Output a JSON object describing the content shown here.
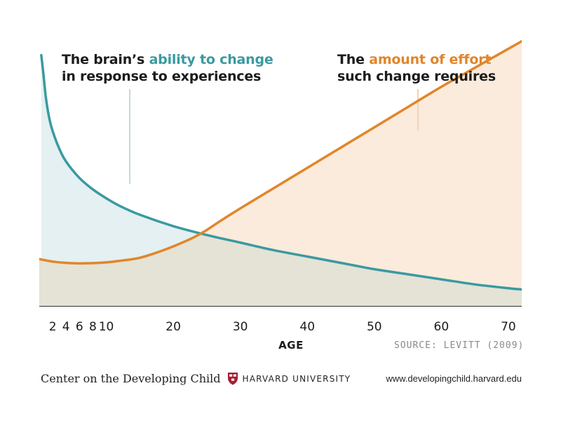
{
  "chart_data": {
    "type": "line",
    "x_ticks": [
      2,
      4,
      6,
      8,
      10,
      20,
      30,
      40,
      50,
      60,
      70
    ],
    "xlabel": "AGE",
    "xlim": [
      0,
      72
    ],
    "ylim": [
      0,
      100
    ],
    "series": [
      {
        "name": "The brain's ability to change in response to experiences",
        "color": "#3a9aa0",
        "fill": "#e4f0f1",
        "x": [
          0.3,
          0.6,
          1,
          1.5,
          2,
          3,
          4,
          6,
          8,
          10,
          12,
          15,
          20,
          25,
          30,
          35,
          40,
          45,
          50,
          55,
          60,
          65,
          70,
          72
        ],
        "y": [
          99,
          92,
          82,
          74,
          69,
          62,
          57,
          50.5,
          46,
          42.5,
          39.5,
          36,
          31.5,
          28,
          25,
          22,
          19.5,
          17,
          14.5,
          12.5,
          10.5,
          8.5,
          7,
          6.5
        ]
      },
      {
        "name": "The amount of effort such change requires",
        "color": "#e0862a",
        "fill": "#fbebdc",
        "x": [
          0,
          2,
          4,
          6,
          8,
          10,
          12,
          15,
          18,
          20,
          23,
          25,
          27,
          30,
          35,
          40,
          45,
          50,
          55,
          60,
          65,
          70,
          72
        ],
        "y": [
          18.5,
          17.5,
          17,
          16.8,
          16.9,
          17.2,
          17.8,
          19,
          21.5,
          23.5,
          27,
          30,
          33.5,
          38.5,
          46.5,
          54.5,
          62.5,
          70.5,
          78.5,
          86.5,
          94,
          101.5,
          104.5
        ]
      }
    ],
    "overlap_fill": "#e5e2d6"
  },
  "annotations": {
    "left": {
      "line1_prefix": "The brain’s ",
      "line1_highlight": "ability to change",
      "line2": "in response to experiences"
    },
    "right": {
      "line1_prefix": "The ",
      "line1_highlight": "amount of effort",
      "line2": "such change requires"
    }
  },
  "source": "SOURCE: LEVITT (2009)",
  "footer": {
    "org": "Center on the Developing Child",
    "university": "HARVARD UNIVERSITY",
    "url": "www.developingchild.harvard.edu"
  },
  "colors": {
    "teal": "#3a9aa0",
    "orange": "#e0862a",
    "harvard_crimson": "#a51c30"
  }
}
